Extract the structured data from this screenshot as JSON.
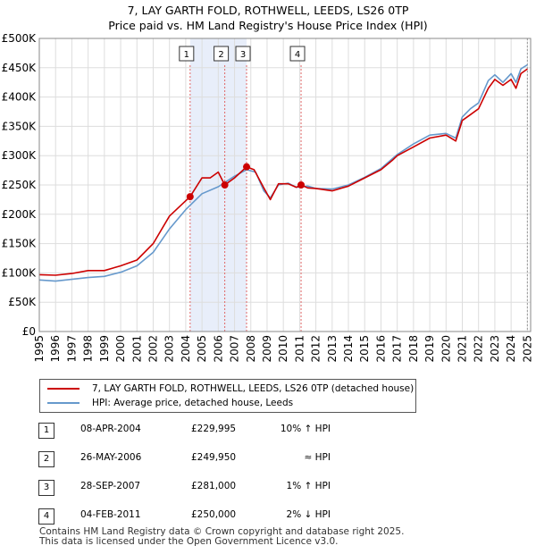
{
  "chart_data": {
    "type": "line",
    "title": "7, LAY GARTH FOLD, ROTHWELL, LEEDS, LS26 0TP",
    "subtitle": "Price paid vs. HM Land Registry's House Price Index (HPI)",
    "ylim": [
      0,
      500000
    ],
    "xlim": [
      1995,
      2025.2
    ],
    "y_ticks": [
      0,
      50000,
      100000,
      150000,
      200000,
      250000,
      300000,
      350000,
      400000,
      450000,
      500000
    ],
    "y_tick_labels": [
      "£0",
      "£50K",
      "£100K",
      "£150K",
      "£200K",
      "£250K",
      "£300K",
      "£350K",
      "£400K",
      "£450K",
      "£500K"
    ],
    "x_ticks": [
      1995,
      1996,
      1997,
      1998,
      1999,
      2000,
      2001,
      2002,
      2003,
      2004,
      2005,
      2006,
      2007,
      2008,
      2009,
      2010,
      2011,
      2012,
      2013,
      2014,
      2015,
      2016,
      2017,
      2018,
      2019,
      2020,
      2021,
      2022,
      2023,
      2024,
      2025
    ],
    "x_tick_labels": [
      "1995",
      "1996",
      "1997",
      "1998",
      "1999",
      "2000",
      "2001",
      "2002",
      "2003",
      "2004",
      "2005",
      "2006",
      "2007",
      "2008",
      "2009",
      "2010",
      "2011",
      "2012",
      "2013",
      "2014",
      "2015",
      "2016",
      "2017",
      "2018",
      "2019",
      "2020",
      "2021",
      "2022",
      "2023",
      "2024",
      "2025"
    ],
    "series": [
      {
        "name": "7, LAY GARTH FOLD, ROTHWELL, LEEDS, LS26 0TP (detached house)",
        "color": "#cc0000",
        "x": [
          1995.0,
          1996.0,
          1997.0,
          1998.0,
          1999.0,
          2000.0,
          2001.0,
          2002.0,
          2003.0,
          2004.27,
          2005.0,
          2005.5,
          2006.0,
          2006.4,
          2007.0,
          2007.74,
          2008.2,
          2008.8,
          2009.2,
          2009.7,
          2010.3,
          2010.8,
          2011.09,
          2011.5,
          2012.0,
          2013.0,
          2014.0,
          2015.0,
          2016.0,
          2016.7,
          2017.0,
          2018.0,
          2019.0,
          2020.0,
          2020.6,
          2021.0,
          2021.5,
          2022.0,
          2022.6,
          2023.0,
          2023.5,
          2024.0,
          2024.3,
          2024.6,
          2025.0
        ],
        "y": [
          97000,
          96000,
          99000,
          104000,
          104000,
          112000,
          122000,
          150000,
          197000,
          229995,
          262000,
          262000,
          272000,
          249950,
          262000,
          281000,
          276000,
          245000,
          225000,
          252000,
          252000,
          246000,
          250000,
          245000,
          244000,
          240000,
          248000,
          262000,
          276000,
          292000,
          300000,
          315000,
          330000,
          335000,
          325000,
          360000,
          370000,
          380000,
          415000,
          430000,
          420000,
          430000,
          415000,
          440000,
          448000
        ]
      },
      {
        "name": "HPI: Average price, detached house, Leeds",
        "color": "#6699cc",
        "x": [
          1995.0,
          1996.0,
          1997.0,
          1998.0,
          1999.0,
          2000.0,
          2001.0,
          2002.0,
          2003.0,
          2004.0,
          2005.0,
          2006.0,
          2007.0,
          2007.74,
          2008.3,
          2008.8,
          2009.2,
          2009.7,
          2010.3,
          2010.8,
          2011.5,
          2012.0,
          2013.0,
          2014.0,
          2015.0,
          2016.0,
          2017.0,
          2018.0,
          2019.0,
          2020.0,
          2020.6,
          2021.0,
          2021.5,
          2022.0,
          2022.6,
          2023.0,
          2023.5,
          2024.0,
          2024.3,
          2024.6,
          2025.0
        ],
        "y": [
          88000,
          86000,
          89000,
          92000,
          94000,
          101000,
          112000,
          135000,
          175000,
          208000,
          235000,
          247000,
          265000,
          276000,
          272000,
          240000,
          228000,
          250000,
          253000,
          246000,
          248000,
          244000,
          243000,
          250000,
          263000,
          278000,
          302000,
          320000,
          335000,
          338000,
          330000,
          366000,
          380000,
          390000,
          428000,
          438000,
          425000,
          440000,
          425000,
          448000,
          455000
        ]
      }
    ],
    "transactions": [
      {
        "label": "1",
        "date": "08-APR-2004",
        "year": 2004.27,
        "price_text": "£229,995",
        "price": 229995,
        "hpi_text": "10% ↑ HPI"
      },
      {
        "label": "2",
        "date": "26-MAY-2006",
        "year": 2006.4,
        "price_text": "£249,950",
        "price": 249950,
        "hpi_text": "≈ HPI"
      },
      {
        "label": "3",
        "date": "28-SEP-2007",
        "year": 2007.74,
        "price_text": "£281,000",
        "price": 281000,
        "hpi_text": "1% ↑ HPI"
      },
      {
        "label": "4",
        "date": "04-FEB-2011",
        "year": 2011.09,
        "price_text": "£250,000",
        "price": 250000,
        "hpi_text": "2% ↓ HPI"
      }
    ],
    "shaded_span": [
      2004.27,
      2007.74
    ]
  },
  "footer": {
    "line1": "Contains HM Land Registry data © Crown copyright and database right 2025.",
    "line2": "This data is licensed under the Open Government Licence v3.0."
  }
}
